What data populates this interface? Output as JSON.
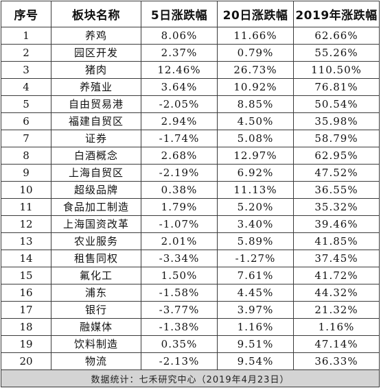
{
  "table": {
    "headers": [
      "序号",
      "板块名称",
      "5日涨跌幅",
      "20日涨跌幅",
      "2019年涨跌幅"
    ],
    "rows": [
      [
        "1",
        "养鸡",
        "8.06%",
        "11.66%",
        "62.66%"
      ],
      [
        "2",
        "园区开发",
        "2.37%",
        "0.79%",
        "55.26%"
      ],
      [
        "3",
        "猪肉",
        "12.46%",
        "26.73%",
        "110.50%"
      ],
      [
        "4",
        "养殖业",
        "3.64%",
        "10.92%",
        "76.81%"
      ],
      [
        "5",
        "自由贸易港",
        "-2.05%",
        "8.85%",
        "50.54%"
      ],
      [
        "6",
        "福建自贸区",
        "2.94%",
        "4.50%",
        "35.98%"
      ],
      [
        "7",
        "证券",
        "-1.74%",
        "5.08%",
        "58.79%"
      ],
      [
        "8",
        "白酒概念",
        "2.68%",
        "12.97%",
        "62.95%"
      ],
      [
        "9",
        "上海自贸区",
        "-2.19%",
        "6.92%",
        "47.52%"
      ],
      [
        "10",
        "超级品牌",
        "0.38%",
        "11.13%",
        "36.55%"
      ],
      [
        "11",
        "食品加工制造",
        "1.79%",
        "5.20%",
        "35.32%"
      ],
      [
        "12",
        "上海国资改革",
        "-1.07%",
        "3.40%",
        "39.46%"
      ],
      [
        "13",
        "农业服务",
        "2.01%",
        "5.89%",
        "41.85%"
      ],
      [
        "14",
        "租售同权",
        "-3.34%",
        "-1.27%",
        "37.45%"
      ],
      [
        "15",
        "氟化工",
        "1.50%",
        "7.61%",
        "41.72%"
      ],
      [
        "16",
        "浦东",
        "-1.58%",
        "4.45%",
        "44.32%"
      ],
      [
        "17",
        "银行",
        "-3.77%",
        "3.97%",
        "21.32%"
      ],
      [
        "18",
        "融媒体",
        "-1.38%",
        "1.16%",
        "1.16%"
      ],
      [
        "19",
        "饮料制造",
        "0.35%",
        "9.51%",
        "47.14%"
      ],
      [
        "20",
        "物流",
        "-2.13%",
        "9.54%",
        "36.33%"
      ]
    ],
    "footer": "数据统计：七禾研究中心（2019年4月23日）"
  }
}
